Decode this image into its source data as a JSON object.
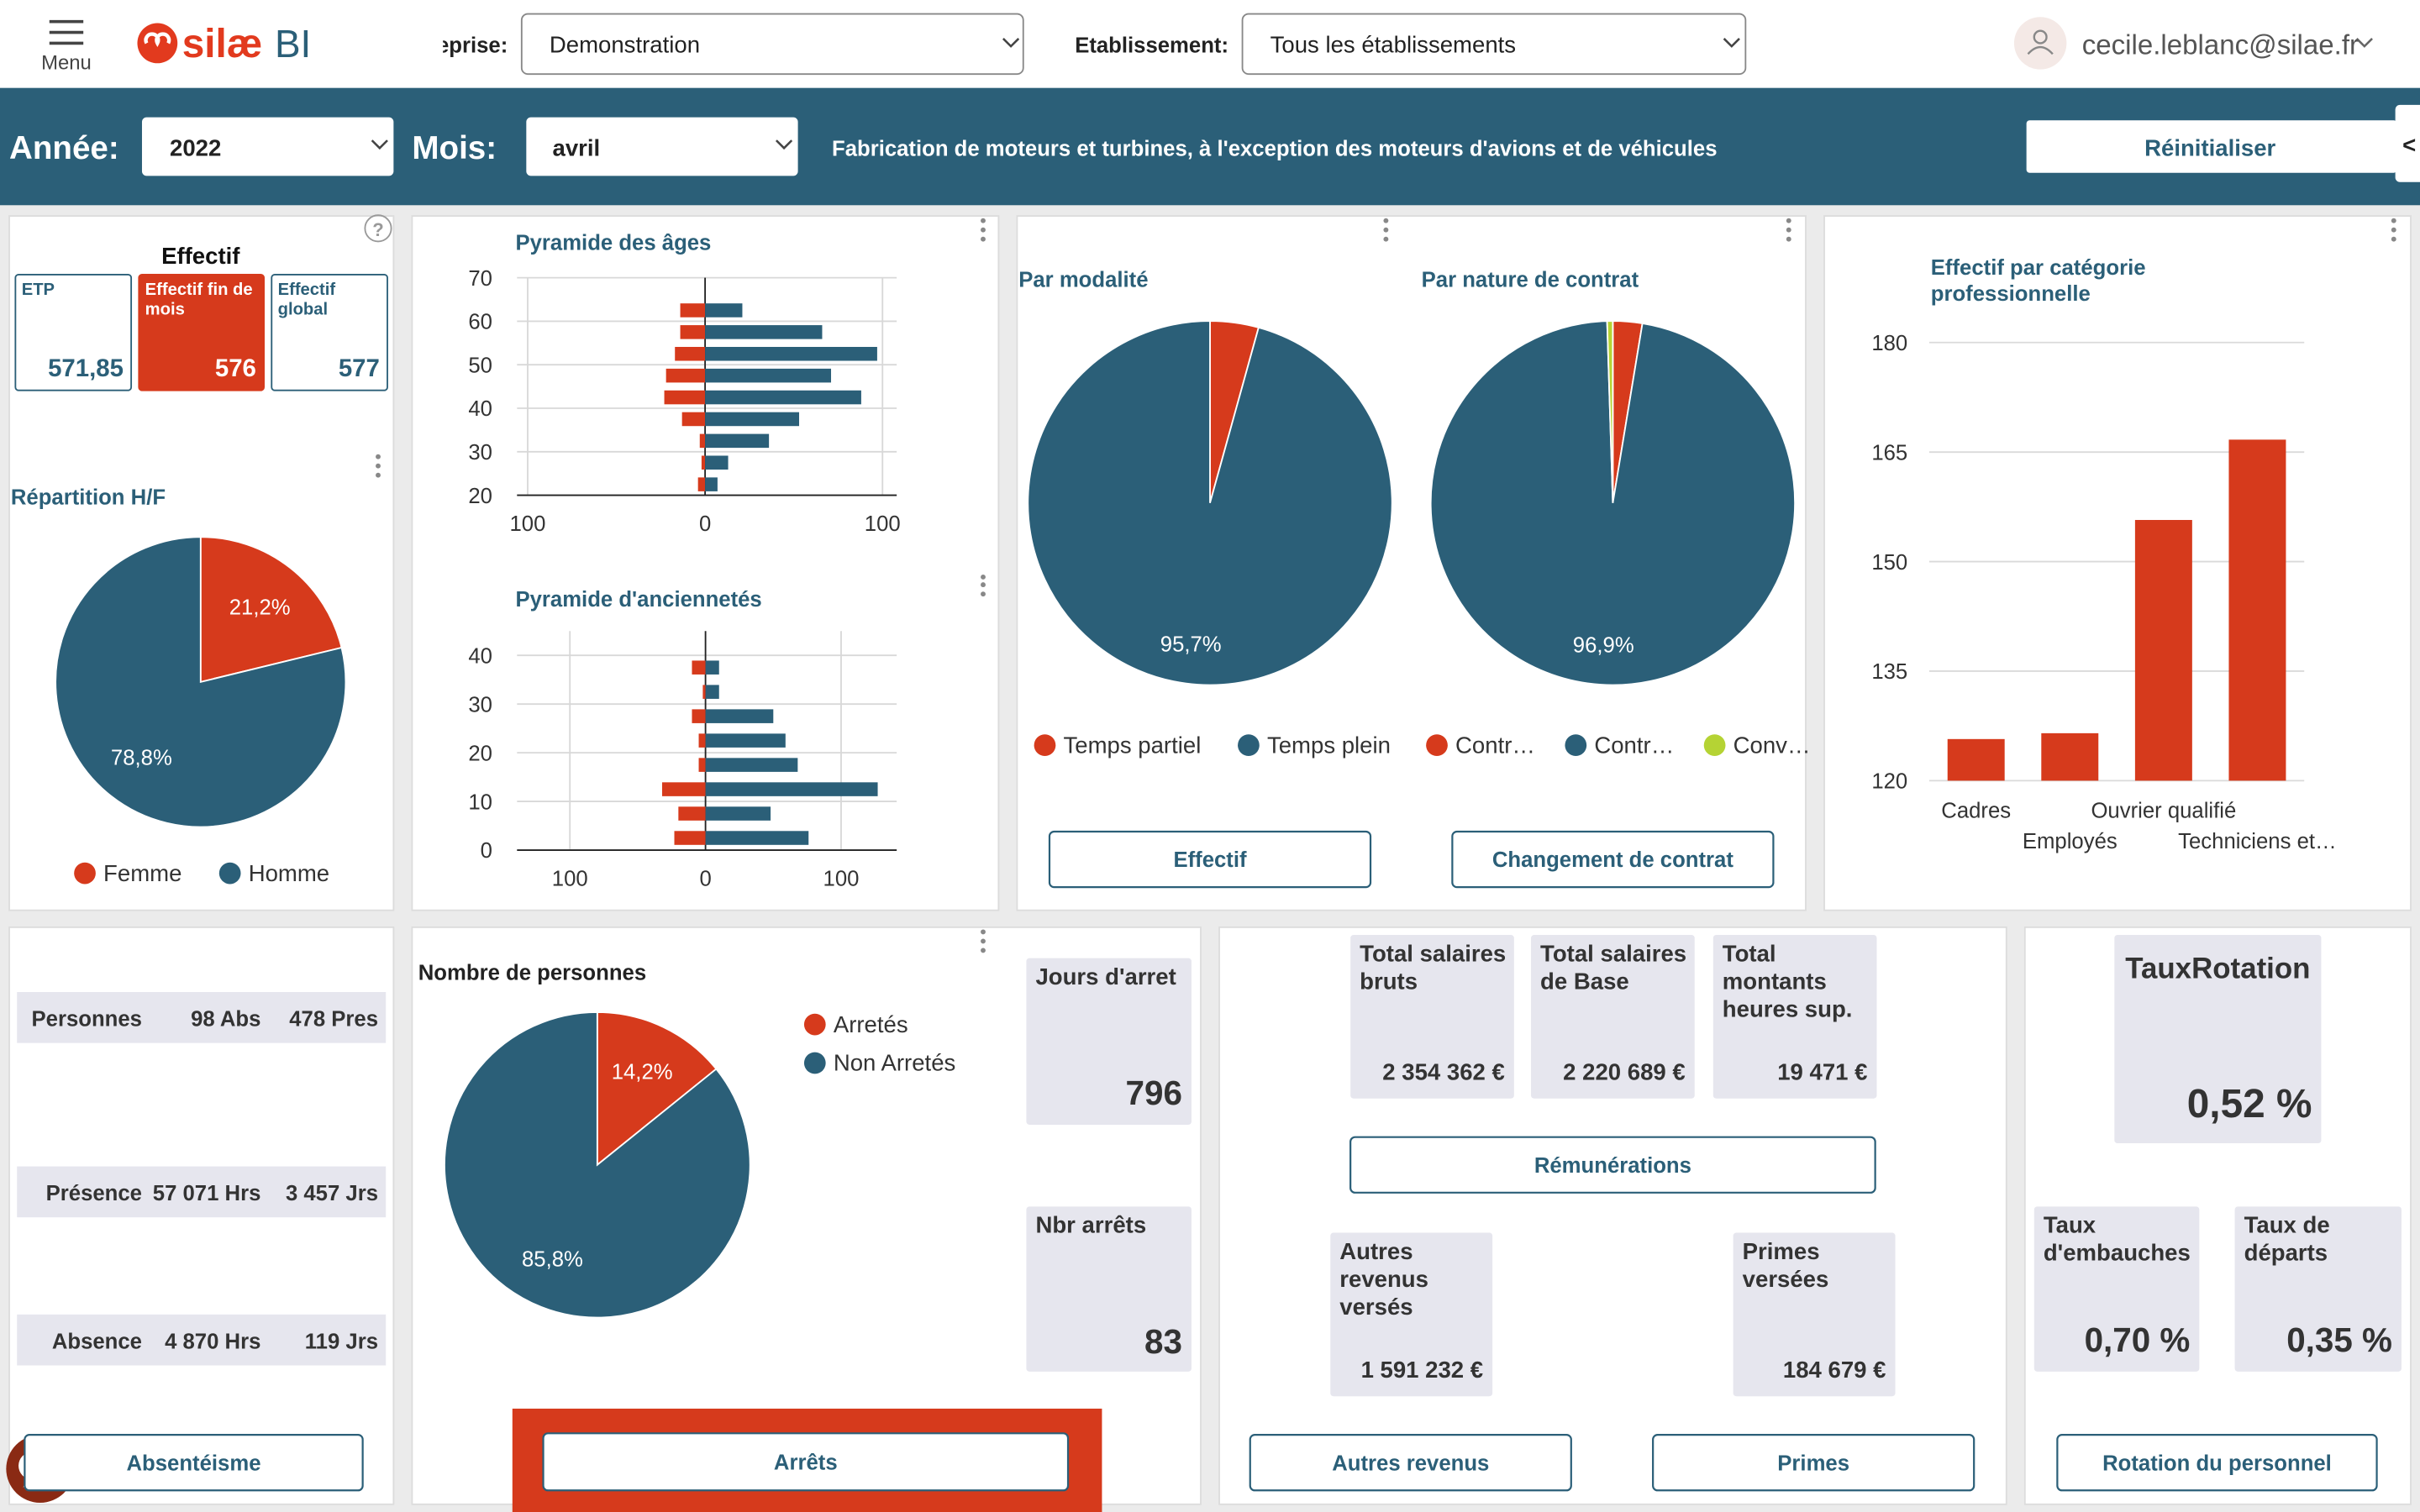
{
  "header": {
    "menu": "Menu",
    "logo": "silæ",
    "logo_suffix": "BI",
    "company_label": "Entreprise:",
    "company": "Demonstration",
    "site_label": "Etablissement:",
    "site": "Tous les établissements",
    "user": "cecile.leblanc@silae.fr"
  },
  "filters": {
    "year_label": "Année:",
    "year": "2022",
    "month_label": "Mois:",
    "month": "avril",
    "activity": "Fabrication de moteurs et turbines, à l'exception des moteurs d'avions et de véhicules",
    "reset": "Réinitialiser",
    "collapse": "<"
  },
  "effectif": {
    "title": "Effectif",
    "help": "?",
    "cards": [
      {
        "label": "ETP",
        "value": "571,85"
      },
      {
        "label": "Effectif fin de mois",
        "value": "576"
      },
      {
        "label": "Effectif global",
        "value": "577"
      }
    ]
  },
  "chart_data": [
    {
      "type": "pie",
      "title": "Répartition H/F",
      "categories": [
        "Femme",
        "Homme"
      ],
      "values": [
        21.2,
        78.8
      ],
      "value_labels": [
        "21,2%",
        "78,8%"
      ],
      "colors": [
        "#d63a1c",
        "#2b5f78"
      ]
    },
    {
      "type": "bar",
      "orientation": "horizontal",
      "title": "Pyramide des âges",
      "y": [
        22.5,
        27.5,
        32.5,
        37.5,
        42.5,
        47.5,
        52.5,
        57.5,
        62.5
      ],
      "series": [
        {
          "color": "#d63a1c",
          "values": [
            -4,
            -2,
            -3,
            -13,
            -23,
            -22,
            -17,
            -14,
            -14
          ]
        },
        {
          "color": "#2b5f78",
          "values": [
            7,
            13,
            36,
            53,
            88,
            71,
            97,
            66,
            21
          ]
        }
      ],
      "xlim": [
        -106,
        108
      ],
      "xticks": [
        {
          "value": -100,
          "label": "100"
        },
        0,
        100
      ],
      "ylim": [
        20,
        70
      ],
      "yticks": [
        20,
        30,
        40,
        50,
        60,
        70
      ]
    },
    {
      "type": "bar",
      "orientation": "horizontal",
      "title": "Pyramide d'anciennetés",
      "y": [
        2.5,
        7.5,
        12.5,
        17.5,
        22.5,
        27.5,
        32.5,
        37.5
      ],
      "series": [
        {
          "color": "#d63a1c",
          "values": [
            -23,
            -20,
            -32,
            -5,
            -5,
            -10,
            -2,
            -10
          ]
        },
        {
          "color": "#2b5f78",
          "values": [
            76,
            48,
            127,
            68,
            59,
            50,
            10,
            10
          ]
        }
      ],
      "xlim": [
        -139,
        141
      ],
      "xticks": [
        {
          "value": -100,
          "label": "100"
        },
        0,
        100
      ],
      "ylim": [
        0,
        45
      ],
      "yticks": [
        0,
        10,
        20,
        30,
        40
      ]
    },
    {
      "type": "pie",
      "title": "Par modalité",
      "categories": [
        "Temps partiel",
        "Temps plein"
      ],
      "values": [
        4.3,
        95.7
      ],
      "value_labels": [
        null,
        "95,7%"
      ],
      "colors": [
        "#d63a1c",
        "#2b5f78"
      ]
    },
    {
      "type": "pie",
      "title": "Par nature de contrat",
      "categories": [
        "Contr…",
        "Contr…",
        "Conv…"
      ],
      "values": [
        2.6,
        96.9,
        0.5
      ],
      "value_labels": [
        null,
        "96,9%",
        null
      ],
      "colors": [
        "#d63a1c",
        "#2b5f78",
        "#b5d334"
      ]
    },
    {
      "type": "bar",
      "title": "Effectif par catégorie professionnelle",
      "categories": [
        "Cadres",
        "Employés",
        "Ouvrier qualifié",
        "Techniciens et…"
      ],
      "values": [
        125.7,
        126.5,
        155.7,
        166.7
      ],
      "color": "#d63a1c",
      "ylim": [
        120,
        180
      ],
      "yticks": [
        120,
        135,
        150,
        165,
        180
      ],
      "grid": true
    },
    {
      "type": "pie",
      "title": "Nombre de personnes",
      "categories": [
        "Arretés",
        "Non Arretés"
      ],
      "values": [
        14.2,
        85.8
      ],
      "value_labels": [
        "14,2%",
        "85,8%"
      ],
      "colors": [
        "#d63a1c",
        "#2b5f78"
      ]
    }
  ],
  "buttons": {
    "effectif": "Effectif",
    "contrat": "Changement de contrat",
    "absenteisme": "Absentéisme",
    "arrets": "Arrêts",
    "remunerations": "Rémunérations",
    "autres": "Autres revenus",
    "primes": "Primes",
    "rotation": "Rotation du personnel"
  },
  "absence": {
    "rows": [
      [
        "Personnes",
        "98 Abs",
        "478 Pres"
      ],
      [
        "Présence",
        "57 071 Hrs",
        "3 457 Jrs"
      ],
      [
        "Absence",
        "4 870 Hrs",
        "119 Jrs"
      ]
    ]
  },
  "arrets": {
    "cards": [
      {
        "label": "Jours d'arret",
        "value": "796"
      },
      {
        "label": "Nbr arrêts",
        "value": "83"
      }
    ]
  },
  "remuneration": {
    "cards": [
      {
        "label": "Total salaires bruts",
        "value": "2 354 362 €"
      },
      {
        "label": "Total salaires de Base",
        "value": "2 220 689 €"
      },
      {
        "label": "Total montants heures sup.",
        "value": "19 471 €"
      },
      {
        "label": "Autres revenus versés",
        "value": "1 591 232 €"
      },
      {
        "label": "Primes versées",
        "value": "184 679 €"
      }
    ]
  },
  "rotation": {
    "cards": [
      {
        "label": "TauxRotation",
        "value": "0,52 %"
      },
      {
        "label": "Taux d'embauches",
        "value": "0,70 %"
      },
      {
        "label": "Taux de départs",
        "value": "0,35 %"
      }
    ]
  }
}
